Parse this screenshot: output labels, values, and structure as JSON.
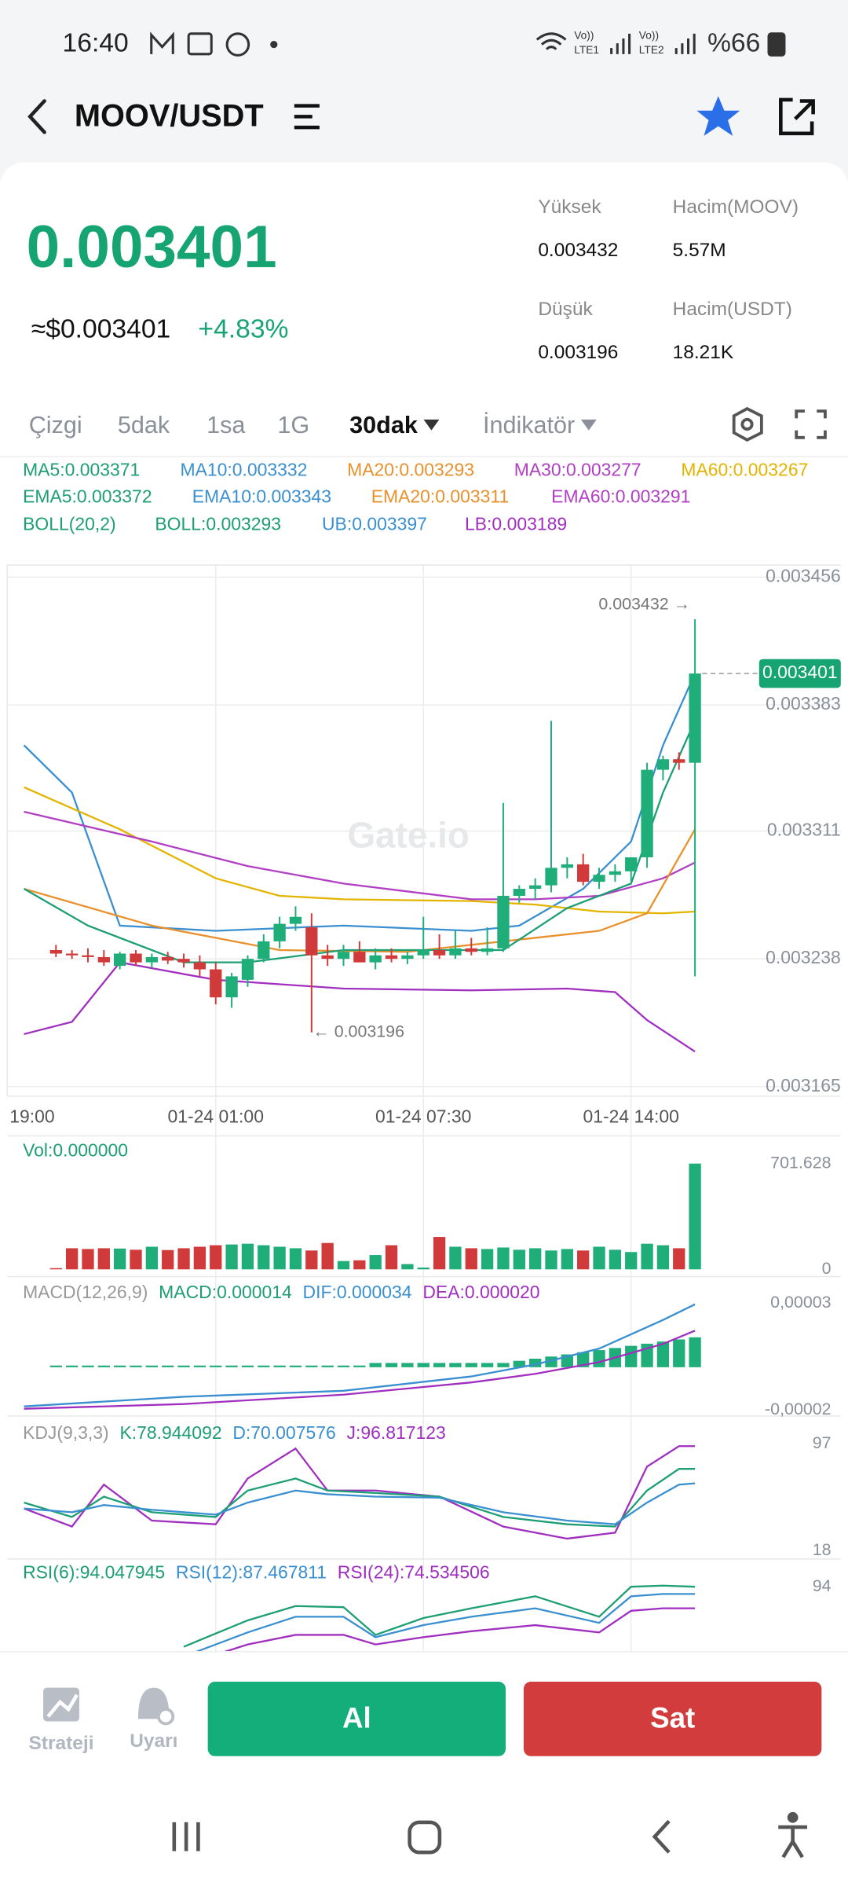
{
  "status_bar": {
    "time": "16:40",
    "lte1": "LTE1",
    "lte2": "LTE2",
    "battery": "%66"
  },
  "header": {
    "pair": "MOOV/USDT"
  },
  "ticker": {
    "price": "0.003401",
    "usd_price": "≈$0.003401",
    "change": "+4.83%",
    "stats": [
      {
        "label": "Yüksek",
        "value": "0.003432"
      },
      {
        "label": "Hacim(MOOV)",
        "value": "5.57M"
      },
      {
        "label": "Düşük",
        "value": "0.003196"
      },
      {
        "label": "Hacim(USDT)",
        "value": "18.21K"
      }
    ]
  },
  "tabs": [
    "Çizgi",
    "5dak",
    "1sa",
    "1G",
    "30dak",
    "İndikatör"
  ],
  "indicator_legend": [
    [
      {
        "text": "MA5:0.003371",
        "color": "#1d9e74"
      },
      {
        "text": "MA10:0.003332",
        "color": "#3a8fd0"
      },
      {
        "text": "MA20:0.003293",
        "color": "#e8912c"
      },
      {
        "text": "MA30:0.003277",
        "color": "#b13fc4"
      },
      {
        "text": "MA60:0.003267",
        "color": "#e3b400"
      }
    ],
    [
      {
        "text": "EMA5:0.003372",
        "color": "#1d9e74"
      },
      {
        "text": "EMA10:0.003343",
        "color": "#3a8fd0"
      },
      {
        "text": "EMA20:0.003311",
        "color": "#e8912c"
      },
      {
        "text": "EMA60:0.003291",
        "color": "#b13fc4"
      }
    ],
    [
      {
        "text": "BOLL(20,2)",
        "color": "#1d9e74"
      },
      {
        "text": "BOLL:0.003293",
        "color": "#1d9e74"
      },
      {
        "text": "UB:0.003397",
        "color": "#3a8fd0"
      },
      {
        "text": "LB:0.003189",
        "color": "#a02fc0"
      }
    ]
  ],
  "chart_data": [
    {
      "type": "candlestick",
      "categories": [
        "19:00",
        null,
        null,
        null,
        null,
        null,
        null,
        null,
        null,
        null,
        null,
        null,
        "01-24 01:00",
        null,
        null,
        null,
        null,
        null,
        null,
        null,
        null,
        null,
        null,
        null,
        null,
        "01-24 07:30",
        null,
        null,
        null,
        null,
        null,
        null,
        null,
        null,
        null,
        null,
        null,
        null,
        "01-24 14:00",
        null,
        null,
        null,
        null
      ],
      "open": [
        null,
        null,
        0.003243,
        0.003241,
        0.00324,
        0.003239,
        0.003234,
        0.003241,
        0.003236,
        0.003239,
        0.003238,
        0.003236,
        0.003232,
        0.003216,
        0.003226,
        0.003238,
        0.003248,
        0.003258,
        0.003256,
        0.00324,
        0.003238,
        0.003242,
        0.003236,
        0.00324,
        0.003238,
        0.00324,
        0.003243,
        0.00324,
        0.003244,
        0.003242,
        0.003244,
        0.003274,
        0.003278,
        0.00328,
        0.00329,
        0.003292,
        0.003282,
        0.003286,
        0.003288,
        0.003296,
        0.003346,
        0.003352,
        0.00335
      ],
      "high": [
        null,
        null,
        0.003246,
        0.003243,
        0.003244,
        0.003243,
        0.003242,
        0.003243,
        0.003241,
        0.003242,
        0.003241,
        0.00324,
        0.003236,
        0.00323,
        0.00324,
        0.003252,
        0.003262,
        0.003268,
        0.003264,
        0.003246,
        0.003246,
        0.003248,
        0.003244,
        0.003244,
        0.003242,
        0.003262,
        0.003252,
        0.003254,
        0.00325,
        0.003256,
        0.003327,
        0.00328,
        0.003284,
        0.003374,
        0.003296,
        0.003298,
        0.00329,
        0.003292,
        0.003296,
        0.00335,
        0.003354,
        0.003356,
        0.003432
      ],
      "low": [
        null,
        null,
        0.003239,
        0.003238,
        0.003236,
        0.003234,
        0.003232,
        0.003234,
        0.003233,
        0.003235,
        0.003233,
        0.003228,
        0.003212,
        0.00321,
        0.003222,
        0.003236,
        0.003244,
        0.003254,
        0.003196,
        0.003234,
        0.003234,
        0.003236,
        0.003232,
        0.003236,
        0.003235,
        0.003238,
        0.003238,
        0.003238,
        0.00324,
        0.00324,
        0.003242,
        0.00327,
        0.003272,
        0.003276,
        0.003284,
        0.00328,
        0.003278,
        0.003282,
        0.003282,
        0.00329,
        0.00334,
        0.003346,
        0.003228
      ],
      "close": [
        null,
        null,
        0.003241,
        0.00324,
        0.003239,
        0.003236,
        0.003241,
        0.003236,
        0.003239,
        0.003237,
        0.003236,
        0.003232,
        0.003216,
        0.003228,
        0.003238,
        0.003248,
        0.003258,
        0.003262,
        0.00324,
        0.003238,
        0.003242,
        0.003236,
        0.00324,
        0.003238,
        0.00324,
        0.003243,
        0.00324,
        0.003244,
        0.003242,
        0.003244,
        0.003274,
        0.003278,
        0.00328,
        0.00329,
        0.003292,
        0.003282,
        0.003286,
        0.003288,
        0.003296,
        0.003346,
        0.003352,
        0.00335,
        0.003401
      ],
      "up_color": "#1fae7a",
      "down_color": "#d03a3a",
      "lines": [
        {
          "color": "#3a8fd0",
          "x": [
            0,
            3,
            6,
            12,
            20,
            28,
            31,
            35,
            38,
            40,
            42
          ],
          "values": [
            0.00336,
            0.003333,
            0.003257,
            0.003254,
            0.003257,
            0.003254,
            0.003257,
            0.003278,
            0.003305,
            0.00336,
            0.003401
          ]
        },
        {
          "color": "#a02fc0",
          "x": [
            0,
            3,
            6,
            12,
            20,
            28,
            34,
            37,
            39,
            42
          ],
          "values": [
            0.003195,
            0.003202,
            0.003236,
            0.003226,
            0.003221,
            0.00322,
            0.003221,
            0.003219,
            0.003203,
            0.003185
          ]
        },
        {
          "color": "#e3b400",
          "x": [
            0,
            6,
            12,
            16,
            20,
            28,
            32,
            36,
            40,
            42
          ],
          "values": [
            0.003336,
            0.003312,
            0.003284,
            0.003274,
            0.003272,
            0.003271,
            0.003269,
            0.003265,
            0.003264,
            0.003265
          ]
        },
        {
          "color": "#b13fc4",
          "x": [
            0,
            8,
            14,
            20,
            28,
            32,
            36,
            40,
            42
          ],
          "values": [
            0.003322,
            0.003305,
            0.003291,
            0.003281,
            0.003272,
            0.003272,
            0.003274,
            0.003284,
            0.003293
          ]
        },
        {
          "color": "#e8912c",
          "x": [
            0,
            8,
            16,
            24,
            32,
            36,
            39,
            42
          ],
          "values": [
            0.003278,
            0.003257,
            0.003243,
            0.003242,
            0.00325,
            0.003254,
            0.003264,
            0.003312
          ]
        },
        {
          "color": "#1d9e74",
          "x": [
            0,
            4,
            10,
            14,
            20,
            30,
            34,
            38,
            40,
            42
          ],
          "values": [
            0.003278,
            0.003257,
            0.003236,
            0.003236,
            0.003243,
            0.003243,
            0.003267,
            0.003281,
            0.003333,
            0.003374
          ]
        }
      ],
      "ylim": [
        0.0031595,
        0.003463
      ],
      "yticks": [
        0.003456,
        0.003383,
        0.003311,
        0.003238,
        0.003165
      ],
      "grid": true,
      "high_label": "0.003432 →",
      "low_label": "← 0.003196",
      "last_price_label": "0.003401",
      "watermark": "Gate.io"
    },
    {
      "type": "bar",
      "title": "Vol:0.000000",
      "values": [
        null,
        null,
        8,
        140,
        135,
        140,
        138,
        130,
        150,
        128,
        140,
        150,
        160,
        165,
        170,
        160,
        150,
        140,
        125,
        175,
        55,
        60,
        95,
        160,
        35,
        12,
        215,
        150,
        140,
        135,
        145,
        130,
        140,
        125,
        135,
        125,
        150,
        130,
        115,
        170,
        160,
        140,
        701.628
      ],
      "ylim": [
        0,
        701.628
      ],
      "yticks": [
        0,
        701.628
      ]
    },
    {
      "type": "macd",
      "legend": [
        {
          "text": "MACD(12,26,9)",
          "color": "#999999"
        },
        {
          "text": "MACD:0.000014",
          "color": "#1d9e74"
        },
        {
          "text": "DIF:0.000034",
          "color": "#3a8fd0"
        },
        {
          "text": "DEA:0.000020",
          "color": "#a02fc0"
        }
      ],
      "histogram": [
        null,
        null,
        8e-07,
        8e-07,
        8e-07,
        8e-07,
        8e-07,
        8e-07,
        8e-07,
        8e-07,
        8e-07,
        8e-07,
        8e-07,
        8e-07,
        8e-07,
        8e-07,
        8e-07,
        8e-07,
        8e-07,
        8e-07,
        8e-07,
        8e-07,
        2e-06,
        2e-06,
        2e-06,
        2e-06,
        2e-06,
        2e-06,
        2e-06,
        2e-06,
        2e-06,
        3e-06,
        4e-06,
        5e-06,
        6e-06,
        7e-06,
        8e-06,
        9e-06,
        1e-05,
        1.1e-05,
        1.2e-05,
        1.3e-05,
        1.4e-05
      ],
      "histogram_color": "#1fae7a",
      "series": [
        {
          "color": "#3a8fd0",
          "x": [
            0,
            10,
            20,
            28,
            32,
            36,
            40,
            42
          ],
          "values": [
            -1.83e-05,
            -1.38e-05,
            -1.1e-05,
            -4.3e-06,
            1.3e-06,
            8.7e-06,
            2.21e-05,
            2.94e-05
          ]
        },
        {
          "color": "#a02fc0",
          "x": [
            0,
            10,
            20,
            28,
            32,
            36,
            40,
            42
          ],
          "values": [
            -1.94e-05,
            -1.72e-05,
            -1.28e-05,
            -7.1e-06,
            -3.1e-06,
            2.4e-06,
            1.09e-05,
            1.71e-05
          ]
        }
      ],
      "ylim": [
        -2.11e-05,
        3.9e-05
      ],
      "yticks": [
        {
          "value": 3e-05,
          "label": "0,00003"
        },
        {
          "value": -2e-05,
          "label": "-0,00002"
        }
      ]
    },
    {
      "type": "kdj",
      "legend": [
        {
          "text": "KDJ(9,3,3)",
          "color": "#999999"
        },
        {
          "text": "K:78.944092",
          "color": "#1d9e74"
        },
        {
          "text": "D:70.007576",
          "color": "#3a8fd0"
        },
        {
          "text": "J:96.817123",
          "color": "#a02fc0"
        }
      ],
      "series": [
        {
          "color": "#a02fc0",
          "x": [
            0,
            3,
            5,
            8,
            12,
            14,
            17,
            19,
            22,
            26,
            30,
            34,
            37,
            39,
            41,
            42
          ],
          "values": [
            49.1,
            35.8,
            66.8,
            40.2,
            37.5,
            71.3,
            93.4,
            62.4,
            62.4,
            57.9,
            35.8,
            26.9,
            31.3,
            80.1,
            95.2,
            95.2
          ]
        },
        {
          "color": "#1d9e74",
          "x": [
            0,
            3,
            5,
            8,
            12,
            14,
            17,
            19,
            22,
            26,
            30,
            34,
            37,
            39,
            41,
            42
          ],
          "values": [
            53.5,
            42.9,
            57.9,
            46.4,
            42.9,
            62.4,
            71.3,
            62.4,
            60.6,
            57.9,
            42.9,
            37.5,
            35.8,
            62.4,
            78.4,
            78.4
          ]
        },
        {
          "color": "#3a8fd0",
          "x": [
            0,
            3,
            5,
            8,
            12,
            14,
            17,
            19,
            22,
            26,
            30,
            34,
            37,
            39,
            41,
            42
          ],
          "values": [
            49.1,
            46.4,
            51.7,
            48.2,
            44.6,
            53.5,
            62.4,
            59.7,
            57.9,
            57.1,
            46.4,
            40.2,
            37.5,
            53.5,
            66.8,
            67.7
          ]
        }
      ],
      "ylim": [
        13.6,
        113
      ],
      "yticks": [
        97,
        18
      ]
    },
    {
      "type": "rsi",
      "legend": [
        {
          "text": "RSI(6):94.047945",
          "color": "#1d9e74"
        },
        {
          "text": "RSI(12):87.467811",
          "color": "#3a8fd0"
        },
        {
          "text": "RSI(24):74.534506",
          "color": "#a02fc0"
        }
      ],
      "series": [
        {
          "color": "#1d9e74",
          "x": [
            10,
            14,
            17,
            20,
            22,
            25,
            28,
            32,
            36,
            38,
            40,
            42
          ],
          "values": [
            62.6,
            76.4,
            83.9,
            83.3,
            68.8,
            77.6,
            82.7,
            89.0,
            78.3,
            94.0,
            94.6,
            94.0
          ]
        },
        {
          "color": "#3a8fd0",
          "x": [
            10,
            14,
            17,
            20,
            22,
            25,
            28,
            32,
            36,
            38,
            40,
            42
          ],
          "values": [
            57.5,
            70.1,
            78.3,
            78.3,
            67.6,
            73.9,
            78.3,
            82.7,
            75.1,
            89.0,
            90.2,
            90.2
          ]
        },
        {
          "color": "#a02fc0",
          "x": [
            10,
            14,
            17,
            20,
            22,
            25,
            28,
            32,
            36,
            38,
            40,
            42
          ],
          "values": [
            53.1,
            63.8,
            68.8,
            68.8,
            63.8,
            67.6,
            70.7,
            73.9,
            70.1,
            81.4,
            82.7,
            82.7
          ]
        }
      ],
      "ylim": [
        43.7,
        106.6
      ],
      "yticks": [
        94
      ]
    }
  ],
  "bottom_bar": {
    "strategy": "Strateji",
    "alert": "Uyarı",
    "buy": "Al",
    "sell": "Sat"
  }
}
